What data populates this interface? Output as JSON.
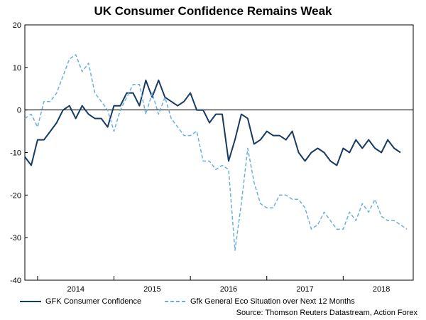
{
  "chart_data": {
    "type": "line",
    "title": "UK Consumer Confidence Remains Weak",
    "ylim": [
      -40,
      20
    ],
    "yticks": [
      20,
      10,
      0,
      -10,
      -20,
      -30,
      -40
    ],
    "x_range": [
      0,
      61
    ],
    "x_tick_positions": [
      2,
      14,
      26,
      38,
      50
    ],
    "year_labels": [
      {
        "label": "2014",
        "x": 8
      },
      {
        "label": "2015",
        "x": 20
      },
      {
        "label": "2016",
        "x": 32
      },
      {
        "label": "2017",
        "x": 44
      },
      {
        "label": "2018",
        "x": 56
      }
    ],
    "series": [
      {
        "name": "GFK Consumer Confidence",
        "style": "solid",
        "color": "#173a63",
        "values": [
          -11,
          -13,
          -7,
          -7,
          -5,
          -3,
          0,
          1,
          -2,
          1,
          -1,
          -2,
          -2,
          -4,
          1,
          1,
          4,
          4,
          1,
          7,
          3,
          7,
          3,
          2,
          1,
          2,
          4,
          0,
          0,
          -3,
          -1,
          -1,
          -12,
          -7,
          -1,
          -2,
          -8,
          -7,
          -5,
          -6,
          -6,
          -7,
          -5,
          -10,
          -12,
          -10,
          -9,
          -10,
          -12,
          -13,
          -9,
          -10,
          -7,
          -9,
          -7,
          -9,
          -10,
          -7,
          -9,
          -10
        ]
      },
      {
        "name": "Gfk General Eco Situation over Next 12 Months",
        "style": "dashed",
        "color": "#6aaee6",
        "values": [
          -2,
          -1,
          -4,
          2,
          2,
          4,
          8,
          12,
          13,
          9,
          11,
          4,
          2,
          0,
          -5,
          0,
          3,
          6,
          6,
          -1,
          4,
          -1,
          3,
          -2,
          -4,
          -6,
          -6,
          -5,
          -12,
          -12,
          -14,
          -13,
          -14,
          -33,
          -22,
          -9,
          -17,
          -22,
          -23,
          -23,
          -20,
          -20,
          -21,
          -21,
          -23,
          -28,
          -27,
          -24,
          -26,
          -28,
          -28,
          -24,
          -26,
          -22,
          -24,
          -21,
          -25,
          -26,
          -26,
          -27,
          -28
        ]
      }
    ]
  },
  "legend": {
    "series1_label": "GFK Consumer Confidence",
    "series2_label": "Gfk General Eco Situation over Next 12 Months"
  },
  "source": "Source: Thomson Reuters Datastream, Action Forex"
}
